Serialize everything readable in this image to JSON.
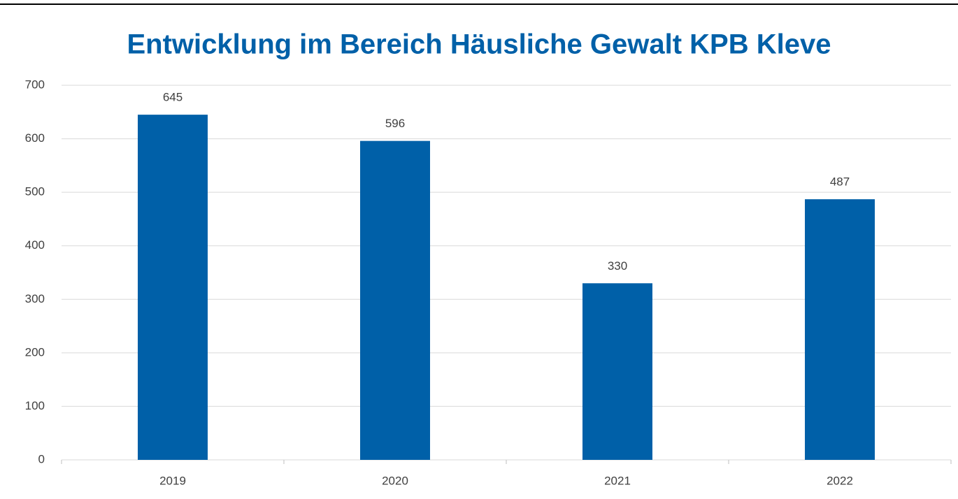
{
  "chart_data": {
    "type": "bar",
    "title": "Entwicklung im Bereich Häusliche Gewalt KPB Kleve",
    "categories": [
      "2019",
      "2020",
      "2021",
      "2022"
    ],
    "values": [
      645,
      596,
      330,
      487
    ],
    "color": "#0060a8",
    "ylim": [
      0,
      700
    ],
    "yticks": [
      0,
      100,
      200,
      300,
      400,
      500,
      600,
      700
    ],
    "grid": true,
    "data_labels": true
  }
}
